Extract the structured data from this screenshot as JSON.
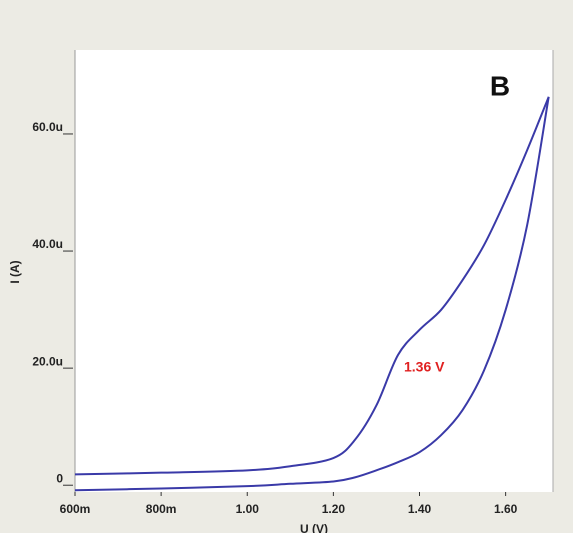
{
  "chart_data": {
    "type": "line",
    "panel_label": "B",
    "annotation": "1.36 V",
    "xlabel": "U (V)",
    "ylabel": "I (A)",
    "x": [
      0.6,
      0.8,
      1.0,
      1.1,
      1.2,
      1.25,
      1.3,
      1.35,
      1.4,
      1.45,
      1.5,
      1.55,
      1.6,
      1.65,
      1.7
    ],
    "series": [
      {
        "color": "#3a3aa8",
        "values": [
          1.5,
          1.8,
          2.2,
          2.9,
          4.3,
          7.4,
          13.3,
          21.9,
          26.2,
          29.6,
          34.7,
          40.7,
          48.4,
          56.9,
          66
        ]
      },
      {
        "color": "#3a3aa8",
        "values": [
          -1.2,
          -0.9,
          -0.5,
          -0.1,
          0.3,
          1.0,
          2.2,
          3.6,
          5.3,
          8.2,
          12.5,
          19.3,
          29.6,
          44.1,
          66
        ]
      }
    ],
    "xlim": [
      0.6,
      1.71
    ],
    "ylim": [
      -1.5,
      74
    ],
    "xticks": [
      {
        "value": 0.6,
        "label": "600m"
      },
      {
        "value": 0.8,
        "label": "800m"
      },
      {
        "value": 1.0,
        "label": "1.00"
      },
      {
        "value": 1.2,
        "label": "1.20"
      },
      {
        "value": 1.4,
        "label": "1.40"
      },
      {
        "value": 1.6,
        "label": "1.60"
      }
    ],
    "yticks": [
      {
        "value": 0,
        "label": "0"
      },
      {
        "value": 20,
        "label": "20.0u"
      },
      {
        "value": 40,
        "label": "40.0u"
      },
      {
        "value": 60,
        "label": "60.0u"
      }
    ]
  }
}
